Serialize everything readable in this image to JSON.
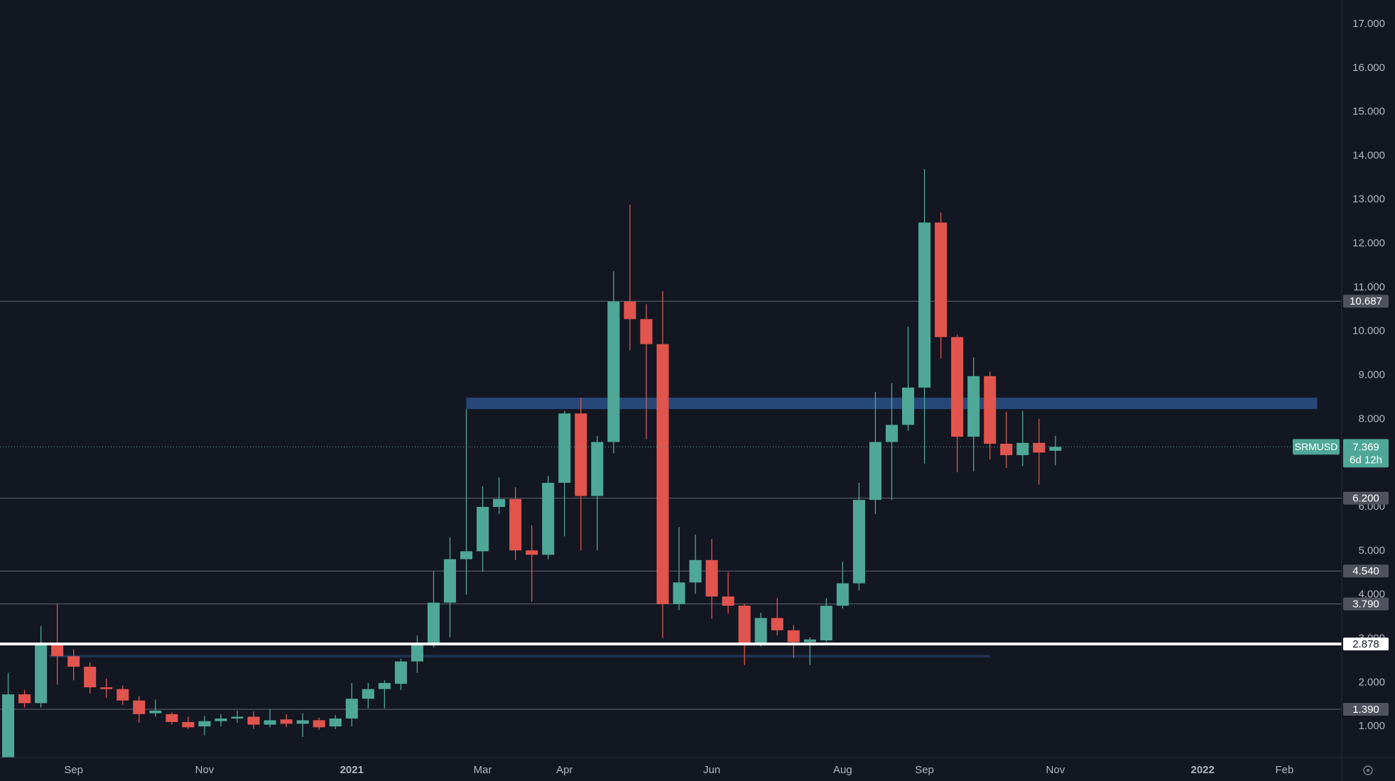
{
  "chart_data": {
    "type": "candlestick",
    "symbol": "SRMUSD",
    "countdown": "6d 12h",
    "categories": [
      null,
      null,
      null,
      null,
      "Sep",
      null,
      null,
      null,
      null,
      null,
      null,
      null,
      "Nov",
      null,
      null,
      null,
      null,
      null,
      null,
      null,
      null,
      "2021",
      null,
      null,
      null,
      null,
      null,
      null,
      null,
      "Mar",
      null,
      null,
      null,
      null,
      "Apr",
      null,
      null,
      null,
      null,
      null,
      null,
      null,
      null,
      "Jun",
      null,
      null,
      null,
      null,
      null,
      null,
      null,
      "Aug",
      null,
      null,
      null,
      null,
      "Sep",
      null,
      null,
      null,
      null,
      null,
      null,
      null,
      "Nov",
      null,
      null,
      null,
      null,
      null,
      null,
      null,
      null,
      "2022",
      null,
      null,
      null,
      null,
      "Feb",
      null,
      null,
      null
    ],
    "open": [
      0.25,
      1.73,
      1.53,
      2.86,
      2.6,
      2.36,
      1.89,
      1.85,
      1.59,
      1.3,
      1.28,
      1.1,
      1.0,
      1.12,
      1.18,
      1.22,
      1.04,
      1.16,
      1.06,
      1.14,
      1.0,
      1.18,
      1.63,
      1.85,
      1.97,
      2.48,
      2.88,
      3.82,
      4.81,
      4.99,
      6.0,
      6.18,
      5.01,
      4.91,
      6.55,
      8.13,
      6.25,
      7.48,
      10.68,
      10.28,
      9.71,
      3.79,
      4.28,
      4.79,
      3.96,
      3.75,
      2.86,
      3.47,
      3.19,
      2.92,
      2.96,
      3.75,
      4.26,
      6.16,
      7.48,
      7.87,
      8.72,
      12.48,
      9.87,
      7.6,
      8.98,
      7.44,
      7.18,
      7.46,
      7.28,
      null,
      null,
      null,
      null,
      null,
      null,
      null,
      null,
      null,
      null,
      null,
      null,
      null,
      null,
      null,
      null,
      null
    ],
    "high": [
      2.22,
      1.83,
      3.29,
      3.8,
      2.76,
      2.46,
      2.09,
      1.93,
      1.69,
      1.61,
      1.32,
      1.22,
      1.24,
      1.28,
      1.36,
      1.34,
      1.4,
      1.28,
      1.3,
      1.2,
      1.26,
      1.99,
      1.99,
      2.05,
      2.54,
      3.07,
      4.54,
      5.31,
      8.23,
      6.47,
      6.67,
      6.45,
      5.58,
      6.71,
      8.19,
      8.49,
      7.62,
      11.37,
      12.89,
      10.62,
      10.92,
      5.54,
      5.37,
      5.27,
      4.52,
      3.8,
      3.59,
      3.92,
      3.31,
      3.03,
      3.92,
      4.75,
      6.55,
      8.62,
      8.82,
      10.11,
      13.7,
      12.71,
      9.93,
      9.41,
      9.08,
      8.17,
      8.19,
      8.01,
      7.62,
      null,
      null,
      null,
      null,
      null,
      null,
      null,
      null,
      null,
      null,
      null,
      null,
      null,
      null,
      null,
      null,
      null
    ],
    "low": [
      0.2,
      1.43,
      1.43,
      1.95,
      2.05,
      1.75,
      1.65,
      1.49,
      1.08,
      1.22,
      1.04,
      0.94,
      0.8,
      1.0,
      1.08,
      0.94,
      0.98,
      0.98,
      0.76,
      0.92,
      0.94,
      1.0,
      1.41,
      1.41,
      1.83,
      2.22,
      2.8,
      3.03,
      4.0,
      4.52,
      5.84,
      4.79,
      3.84,
      4.81,
      5.33,
      5.01,
      5.01,
      7.22,
      9.57,
      7.54,
      3.01,
      3.65,
      4.02,
      3.45,
      3.57,
      2.4,
      2.82,
      3.07,
      2.56,
      2.4,
      2.92,
      3.69,
      4.1,
      5.84,
      6.16,
      7.74,
      6.99,
      9.38,
      6.79,
      6.81,
      7.08,
      6.89,
      6.93,
      6.51,
      6.95,
      null,
      null,
      null,
      null,
      null,
      null,
      null,
      null,
      null,
      null,
      null,
      null,
      null,
      null,
      null,
      null,
      null
    ],
    "close": [
      1.73,
      1.53,
      2.86,
      2.6,
      2.36,
      1.89,
      1.85,
      1.59,
      1.28,
      1.36,
      1.1,
      0.98,
      1.12,
      1.18,
      1.22,
      1.04,
      1.14,
      1.06,
      1.14,
      0.98,
      1.18,
      1.63,
      1.85,
      1.99,
      2.48,
      2.88,
      3.82,
      4.81,
      4.99,
      6.0,
      6.18,
      5.01,
      4.91,
      6.55,
      8.13,
      6.25,
      7.48,
      10.68,
      10.28,
      9.71,
      3.79,
      4.28,
      4.79,
      3.96,
      3.75,
      2.86,
      3.47,
      3.19,
      2.92,
      2.98,
      3.75,
      4.26,
      6.16,
      7.48,
      7.87,
      8.72,
      12.48,
      9.87,
      7.6,
      8.98,
      7.44,
      7.18,
      7.46,
      7.24,
      7.369,
      null,
      null,
      null,
      null,
      null,
      null,
      null,
      null,
      null,
      null,
      null,
      null,
      null,
      null,
      null,
      null,
      null
    ],
    "up_color": "#4fa797",
    "down_color": "#e1554e",
    "ylim": [
      0.29,
      17.55
    ],
    "yticks": [
      {
        "value": 1,
        "label": "1.000"
      },
      {
        "value": 2,
        "label": "2.000"
      },
      {
        "value": 3,
        "label": "3.000"
      },
      {
        "value": 4,
        "label": "4.000"
      },
      {
        "value": 5,
        "label": "5.000"
      },
      {
        "value": 6,
        "label": "6.000"
      },
      {
        "value": 7,
        "label": "7.000"
      },
      {
        "value": 8,
        "label": "8.000"
      },
      {
        "value": 9,
        "label": "9.000"
      },
      {
        "value": 10,
        "label": "10.000"
      },
      {
        "value": 11,
        "label": "11.000"
      },
      {
        "value": 12,
        "label": "12.000"
      },
      {
        "value": 13,
        "label": "13.000"
      },
      {
        "value": 14,
        "label": "14.000"
      },
      {
        "value": 15,
        "label": "15.000"
      },
      {
        "value": 16,
        "label": "16.000"
      },
      {
        "value": 17,
        "label": "17.000"
      }
    ],
    "levels": [
      10.687,
      {
        "value": 6.2,
        "label": "6.200"
      },
      {
        "value": 4.54,
        "label": "4.540"
      },
      {
        "value": 3.79,
        "label": "3.790"
      },
      {
        "value": 1.39,
        "label": "1.390"
      }
    ],
    "key_level": 2.878,
    "zones": [
      {
        "low": 8.23,
        "high": 8.49,
        "x": [
          28,
          80
        ],
        "color": "#2a4c82"
      },
      {
        "low": 2.57,
        "high": 2.63,
        "x": [
          2.5,
          60
        ],
        "color": "#213654"
      }
    ]
  }
}
